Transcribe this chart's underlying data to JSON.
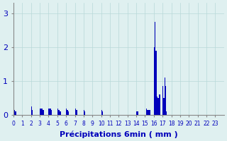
{
  "bar_color": "#0000bb",
  "background_color": "#dff0f0",
  "grid_color": "#b8d8d8",
  "axis_color": "#0000bb",
  "xlabel": "Précipitations 6min ( mm )",
  "xlabel_fontsize": 8,
  "ylim": [
    0,
    3.3
  ],
  "yticks": [
    0,
    1,
    2,
    3
  ],
  "xtick_labels": [
    "0",
    "1",
    "2",
    "3",
    "4",
    "5",
    "6",
    "7",
    "8",
    "9",
    "10",
    "11",
    "12",
    "13",
    "14",
    "15",
    "16",
    "17",
    "18",
    "19",
    "20",
    "21",
    "22",
    "23"
  ],
  "n_hours": 24,
  "bars_per_hour": 10,
  "values": [
    0.2,
    0.15,
    0.1,
    0,
    0,
    0,
    0,
    0,
    0,
    0,
    0,
    0,
    0,
    0,
    0,
    0,
    0,
    0,
    0,
    0,
    0.25,
    0.15,
    0,
    0,
    0,
    0,
    0,
    0,
    0,
    0,
    0.2,
    0.2,
    0.2,
    0.15,
    0.15,
    0,
    0,
    0,
    0,
    0,
    0.2,
    0.2,
    0.2,
    0.15,
    0,
    0,
    0,
    0,
    0,
    0,
    0.2,
    0.15,
    0.15,
    0.1,
    0,
    0,
    0,
    0,
    0,
    0,
    0.2,
    0.15,
    0.1,
    0,
    0,
    0,
    0,
    0,
    0,
    0,
    0.2,
    0.15,
    0.15,
    0,
    0,
    0,
    0,
    0,
    0,
    0,
    0.15,
    0.1,
    0,
    0,
    0,
    0,
    0,
    0,
    0,
    0,
    0,
    0,
    0,
    0,
    0,
    0,
    0,
    0,
    0,
    0,
    0.15,
    0.1,
    0,
    0,
    0,
    0,
    0,
    0,
    0,
    0,
    0,
    0,
    0,
    0,
    0,
    0,
    0,
    0,
    0,
    0,
    0,
    0,
    0,
    0,
    0,
    0,
    0,
    0,
    0,
    0,
    0,
    0,
    0,
    0,
    0,
    0,
    0,
    0,
    0,
    0,
    0.1,
    0.1,
    0,
    0,
    0,
    0,
    0,
    0,
    0,
    0,
    0,
    0.2,
    0.15,
    0.15,
    0.15,
    0.15,
    0,
    0,
    0,
    0,
    2.0,
    2.75,
    1.9,
    0.55,
    0.5,
    0.5,
    0.6,
    0,
    0,
    0,
    0.85,
    0.5,
    1.1,
    0.85,
    0.1,
    0,
    0,
    0,
    0,
    0,
    0,
    0,
    0,
    0,
    0,
    0,
    0,
    0,
    0,
    0,
    0,
    0,
    0,
    0,
    0,
    0,
    0,
    0,
    0,
    0,
    0,
    0,
    0,
    0,
    0,
    0,
    0,
    0,
    0,
    0,
    0,
    0,
    0,
    0,
    0,
    0,
    0,
    0,
    0,
    0,
    0,
    0,
    0,
    0,
    0,
    0,
    0,
    0,
    0,
    0,
    0,
    0,
    0,
    0,
    0,
    0,
    0,
    0,
    0,
    0
  ]
}
